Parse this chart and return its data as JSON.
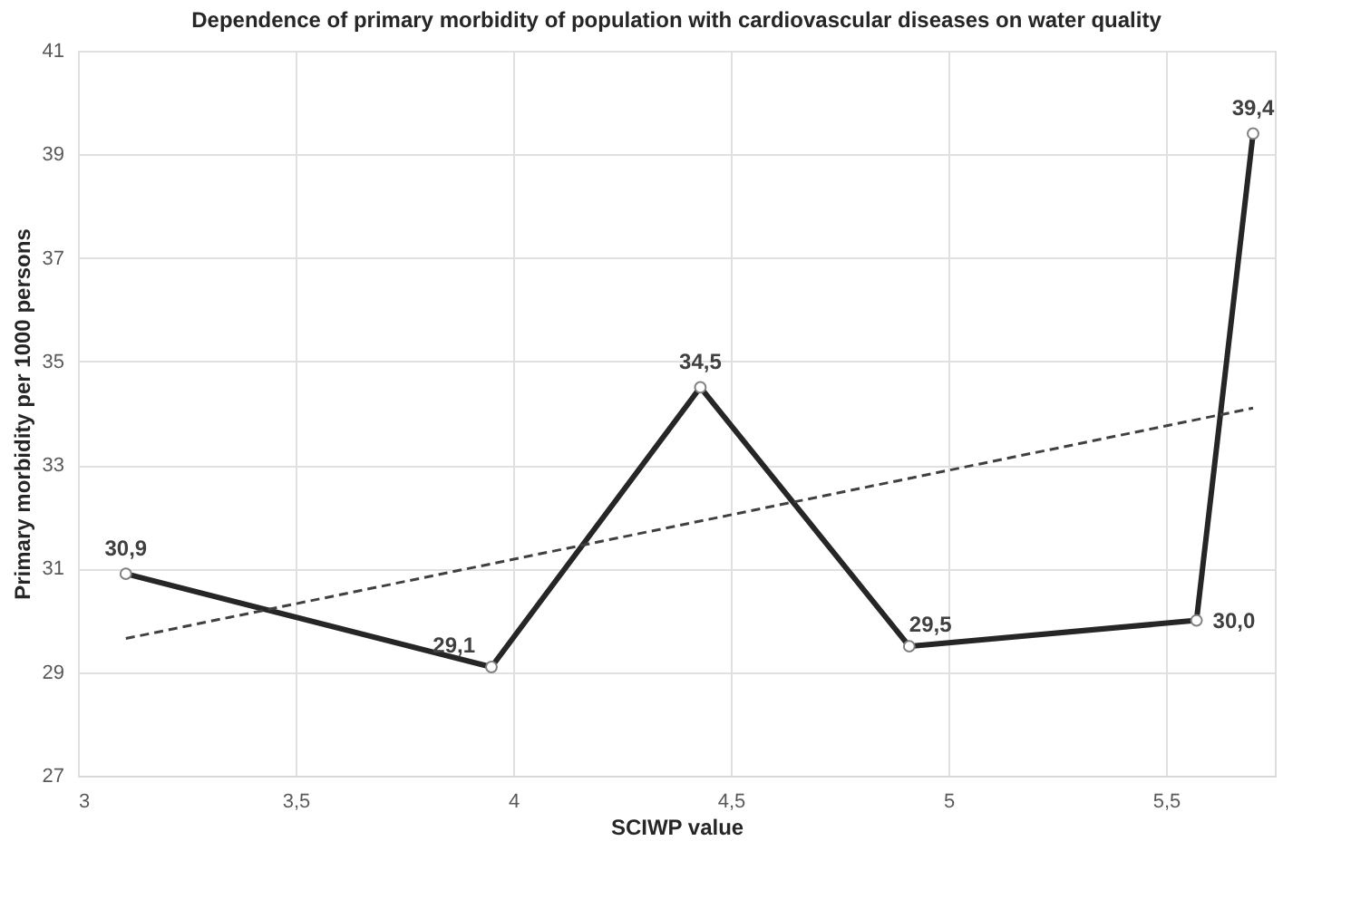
{
  "chart_data": {
    "type": "line",
    "title": "Dependence of primary morbidity of population with cardiovascular diseases on water quality",
    "xlabel": "SCIWP value",
    "ylabel": "Primary morbidity per 1000 persons",
    "series": [
      {
        "color": "#262626",
        "x": [
          3.11,
          3.95,
          4.43,
          4.91,
          5.57,
          5.7
        ],
        "values": [
          30.9,
          29.1,
          34.5,
          29.5,
          30.0,
          39.4
        ],
        "value_labels": [
          "30,9",
          "29,1",
          "34,5",
          "29,5",
          "30,0",
          "39,4"
        ],
        "marker": "circle",
        "line_style": "solid"
      },
      {
        "type": "line",
        "color": "#404040",
        "x": [
          3.11,
          5.7
        ],
        "values": [
          29.65,
          34.1
        ],
        "marker": "none",
        "line_style": "dashed"
      }
    ],
    "xlim": [
      3,
      5.75
    ],
    "xticks": [
      3,
      {
        "value": 3.5,
        "label": "3,5"
      },
      4,
      {
        "value": 4.5,
        "label": "4,5"
      },
      5,
      {
        "value": 5.5,
        "label": "5,5"
      }
    ],
    "ylim": [
      27,
      41
    ],
    "yticks": [
      27,
      29,
      31,
      33,
      35,
      37,
      39,
      41
    ],
    "grid": true
  }
}
